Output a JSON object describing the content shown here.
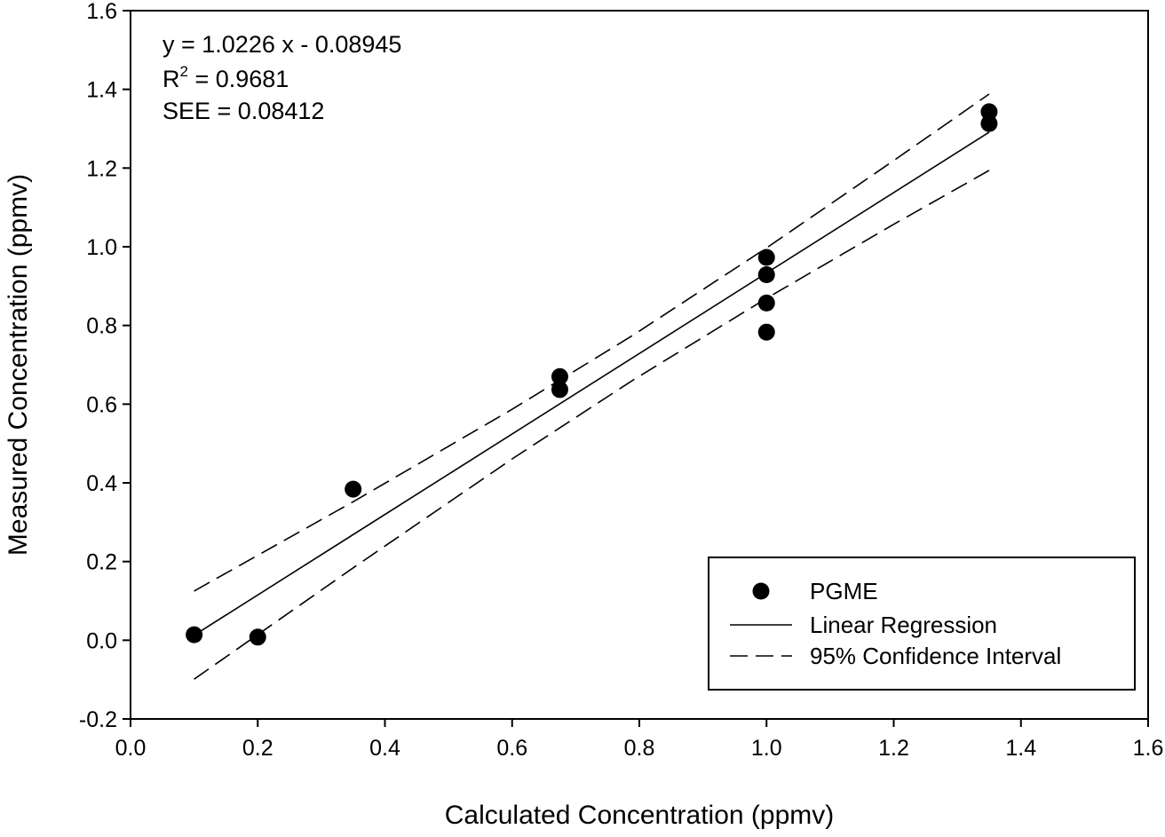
{
  "chart_data": {
    "type": "scatter",
    "xlabel": "Calculated Concentration (ppmv)",
    "ylabel": "Measured Concentration (ppmv)",
    "xlim": [
      0.0,
      1.6
    ],
    "ylim": [
      -0.2,
      1.6
    ],
    "x_ticks": [
      "0.0",
      "0.2",
      "0.4",
      "0.6",
      "0.8",
      "1.0",
      "1.2",
      "1.4",
      "1.6"
    ],
    "y_ticks": [
      "-0.2",
      "0.0",
      "0.2",
      "0.4",
      "0.6",
      "0.8",
      "1.0",
      "1.2",
      "1.4",
      "1.6"
    ],
    "grid": false,
    "legend_position": "bottom-right",
    "annotations": {
      "equation": "y = 1.0226 x - 0.08945",
      "r2_prefix": "R",
      "r2_superscript": "2",
      "r2_value": " = 0.9681",
      "see": "SEE = 0.08412"
    },
    "series": [
      {
        "name": "PGME",
        "kind": "scatter",
        "color": "#000000",
        "points": [
          [
            0.1,
            0.014
          ],
          [
            0.2,
            0.008
          ],
          [
            0.35,
            0.384
          ],
          [
            0.675,
            0.67
          ],
          [
            0.675,
            0.637
          ],
          [
            1.0,
            0.973
          ],
          [
            1.0,
            0.929
          ],
          [
            1.0,
            0.857
          ],
          [
            1.0,
            0.783
          ],
          [
            1.35,
            1.343
          ],
          [
            1.35,
            1.313
          ]
        ]
      },
      {
        "name": "Linear Regression",
        "kind": "line",
        "slope": 1.0226,
        "intercept": -0.08945,
        "x_range": [
          0.1,
          1.35
        ]
      },
      {
        "name": "95% Confidence Interval",
        "kind": "dashed",
        "x": [
          0.1,
          0.35,
          0.6,
          0.79,
          1.0,
          1.2,
          1.35
        ],
        "upper": [
          0.125,
          0.352,
          0.587,
          0.775,
          0.997,
          1.219,
          1.388
        ],
        "lower": [
          -0.099,
          0.184,
          0.461,
          0.661,
          0.869,
          1.057,
          1.194
        ]
      }
    ]
  }
}
